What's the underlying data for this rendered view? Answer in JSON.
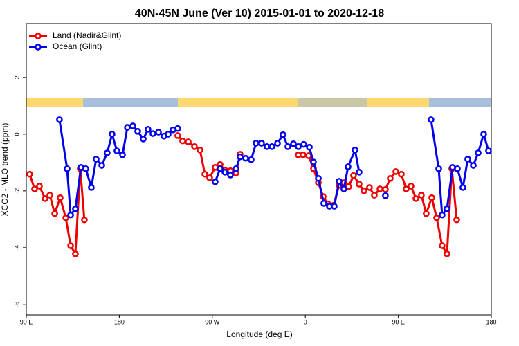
{
  "chart_data": {
    "type": "line",
    "title": "40N-45N June (Ver 10)   2015-01-01 to 2020-12-18",
    "x_label": "Longitude (deg E)",
    "y_label": "XCO2 - MLO trend (ppm)",
    "xlim": [
      90,
      540
    ],
    "ylim": [
      -6.37,
      3.9
    ],
    "xticks": [
      {
        "value": 90,
        "label": "90 E"
      },
      180,
      {
        "value": 270,
        "label": "90 W"
      },
      {
        "value": 360,
        "label": "0"
      },
      {
        "value": 450,
        "label": "90 E"
      },
      {
        "value": 540,
        "label": "180"
      }
    ],
    "yticks": [
      -6,
      -4,
      -2,
      0,
      2
    ],
    "legend": "top-left",
    "series": [
      {
        "name": "Land (Nadir&Glint)",
        "color": "#ee0000",
        "x": [
          93.3,
          98.0,
          102.7,
          108.1,
          112.8,
          117.5,
          122.8,
          128.2,
          132.9,
          137.5,
          142.2,
          146.2,
          190,
          236.6,
          241.3,
          246.7,
          252.7,
          258.1,
          262.8,
          267.4,
          272.8,
          277.5,
          282.2,
          287.5,
          292.9,
          296.9,
          340,
          353.2,
          357.8,
          363.2,
          367.9,
          372.6,
          377.3,
          381.9,
          387.3,
          392.7,
          397.3,
          402.0,
          406.7,
          412.1,
          416.8,
          422.1,
          426.8,
          432.2,
          437.5,
          442.2,
          447.6,
          452.9,
          457.6,
          462.3,
          467.0,
          472.3,
          477.0,
          482.4,
          487.1,
          492.4,
          497.1,
          501.8,
          506.5
        ],
        "values": [
          -1.41,
          -1.93,
          -1.83,
          -2.27,
          -2.15,
          -2.8,
          -2.24,
          -2.95,
          -3.93,
          -4.22,
          -1.22,
          -3.02,
          null,
          -0.05,
          -0.24,
          -0.27,
          -0.44,
          -0.56,
          -1.41,
          -1.54,
          -1.17,
          -1.07,
          -1.27,
          -1.29,
          -1.37,
          -0.71,
          null,
          -0.73,
          -0.73,
          -0.76,
          -1.22,
          -1.71,
          -2.2,
          -2.46,
          -2.51,
          -1.8,
          -1.71,
          -1.85,
          -1.46,
          -1.76,
          -2.0,
          -1.88,
          -2.15,
          -1.93,
          -1.95,
          -1.56,
          -1.32,
          -1.41,
          -1.93,
          -1.83,
          -2.27,
          -2.15,
          -2.8,
          -2.24,
          -2.95,
          -3.93,
          -4.22,
          -1.22,
          -3.02
        ]
      },
      {
        "name": "Ocean (Glint)",
        "color": "#0000ee",
        "x": [
          122.1,
          129.5,
          132.9,
          137.5,
          142.9,
          147.6,
          152.9,
          157.6,
          163.0,
          168.3,
          173.0,
          177.7,
          183.1,
          187.8,
          193.1,
          197.8,
          203.2,
          207.8,
          212.5,
          217.9,
          223.2,
          227.3,
          232.0,
          236.6,
          255,
          272.8,
          277.5,
          282.2,
          287.5,
          292.9,
          296.9,
          302.3,
          307.6,
          312.3,
          317.7,
          323.0,
          327.7,
          333.1,
          338.4,
          343.1,
          348.5,
          353.2,
          358.5,
          363.9,
          367.9,
          372.6,
          377.9,
          383.3,
          388.0,
          392.7,
          397.3,
          401.4,
          408.1,
          412.1,
          425,
          437.5,
          460,
          481.7,
          489.1,
          492.4,
          497.1,
          502.5,
          507.2,
          512.5,
          517.2,
          522.6,
          527.3,
          532.6,
          537.3
        ],
        "values": [
          0.51,
          -1.22,
          -2.85,
          -2.63,
          -1.17,
          -1.22,
          -1.88,
          -0.88,
          -1.1,
          -0.66,
          0.0,
          -0.59,
          -0.73,
          0.24,
          0.29,
          0.1,
          -0.17,
          0.17,
          0.02,
          0.07,
          -0.07,
          0.0,
          0.15,
          0.2,
          null,
          -1.68,
          -1.22,
          -1.34,
          -1.44,
          -1.22,
          -0.8,
          -0.85,
          -0.9,
          -0.32,
          -0.32,
          -0.44,
          -0.44,
          -0.32,
          -0.02,
          -0.44,
          -0.34,
          -0.44,
          -0.36,
          -0.46,
          -0.98,
          -1.56,
          -2.44,
          -2.54,
          -2.54,
          -1.66,
          -1.93,
          -1.15,
          -0.56,
          -1.34,
          null,
          -2.17,
          null,
          0.51,
          -1.22,
          -2.85,
          -2.63,
          -1.17,
          -1.22,
          -1.88,
          -0.88,
          -1.1,
          -0.66,
          0.0,
          -0.59
        ]
      }
    ]
  }
}
